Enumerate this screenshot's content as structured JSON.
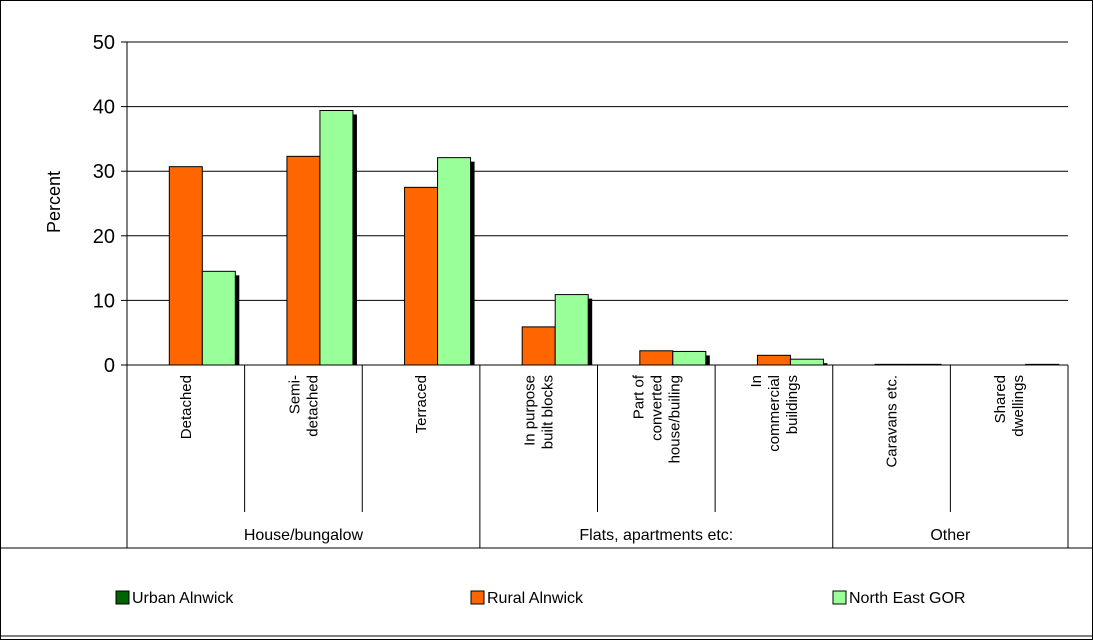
{
  "chart_data": {
    "type": "bar",
    "ylabel": "Percent",
    "ylim": [
      0,
      50
    ],
    "yticks": [
      0,
      10,
      20,
      30,
      40,
      50
    ],
    "grid": true,
    "legend_position": "bottom",
    "categories": [
      [
        "Detached"
      ],
      [
        "Semi-",
        "detached"
      ],
      [
        "Terraced"
      ],
      [
        "In purpose",
        "built blocks"
      ],
      [
        "Part of",
        "converted",
        "house/builing"
      ],
      [
        "In",
        "commercial",
        "buildings"
      ],
      [
        "Caravans etc."
      ],
      [
        "Shared",
        "dwellings"
      ]
    ],
    "groups": [
      {
        "label": "House/bungalow",
        "span": 3
      },
      {
        "label": "Flats, apartments etc:",
        "span": 3
      },
      {
        "label": "Other",
        "span": 2
      }
    ],
    "series": [
      {
        "name": "Urban Alnwick",
        "color": "#006400",
        "values": [
          0,
          0,
          0,
          0,
          0,
          0,
          0,
          0
        ]
      },
      {
        "name": "Rural Alnwick",
        "color": "#FF6600",
        "values": [
          30.7,
          32.3,
          27.5,
          5.9,
          2.2,
          1.5,
          0.1,
          0.0
        ]
      },
      {
        "name": "North East GOR",
        "color": "#99FF99",
        "values": [
          14.5,
          39.4,
          32.1,
          10.9,
          2.1,
          0.9,
          0.1,
          0.1
        ]
      }
    ]
  }
}
